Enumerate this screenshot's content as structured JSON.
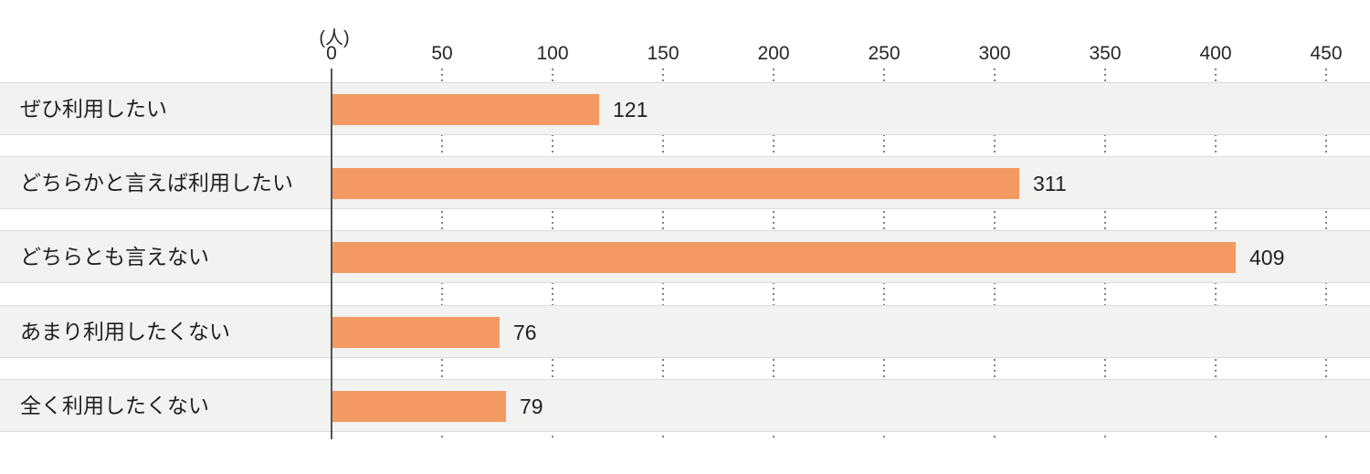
{
  "chart_data": {
    "type": "bar",
    "orientation": "horizontal",
    "title": "",
    "unit": "(人)",
    "categories": [
      "ぜひ利用したい",
      "どちらかと言えば利用したい",
      "どちらとも言えない",
      "あまり利用したくない",
      "全く利用したくない"
    ],
    "values": [
      121,
      311,
      409,
      76,
      79
    ],
    "x_ticks": [
      0,
      50,
      100,
      150,
      200,
      250,
      300,
      350,
      400,
      450
    ],
    "xlim": [
      0,
      450
    ],
    "xlabel": "",
    "ylabel": "",
    "grid": "dotted-vertical",
    "legend": "none",
    "bar_color": "#f29a62",
    "band_color": "#f2f2f1",
    "axis_line_color": "#555555",
    "grid_dot_color": "#808080",
    "text_color": "#1f1f1f"
  }
}
